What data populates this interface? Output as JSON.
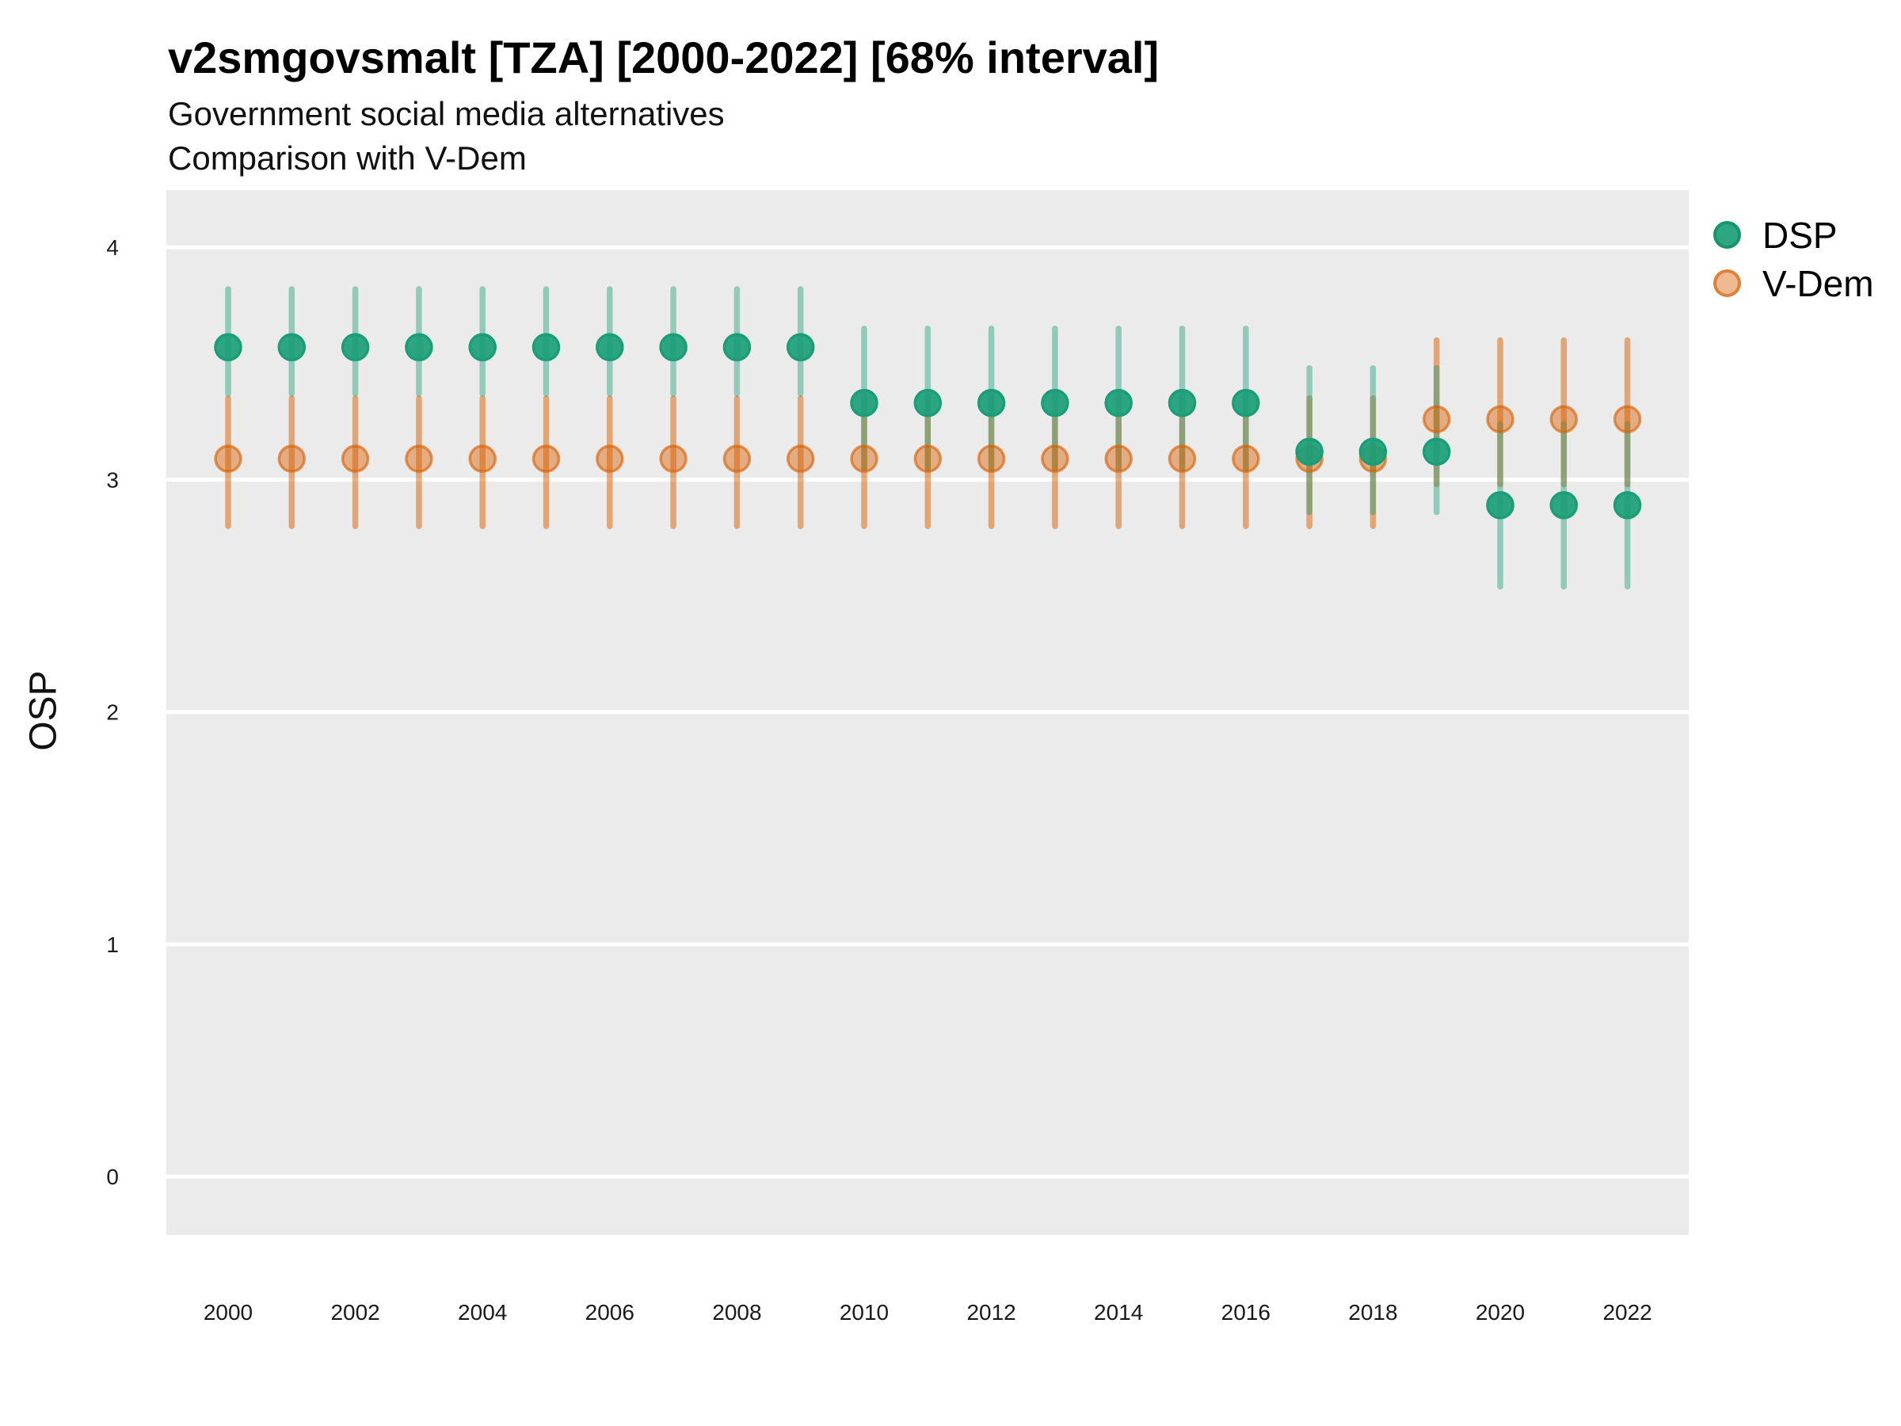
{
  "chart_data": {
    "type": "pointrange",
    "title": "v2smgovsmalt [TZA] [2000-2022] [68% interval]",
    "subtitle_line1": "Government social media alternatives",
    "subtitle_line2": "Comparison with V-Dem",
    "ylabel": "OSP",
    "xlabel": "",
    "interval": "68%",
    "country": "TZA",
    "ylim": [
      -0.25,
      4.25
    ],
    "xlim": [
      1999,
      2023
    ],
    "yticks": [
      0,
      1,
      2,
      3,
      4
    ],
    "xticks": [
      2000,
      2002,
      2004,
      2006,
      2008,
      2010,
      2012,
      2014,
      2016,
      2018,
      2020,
      2022
    ],
    "grid": "horizontal-major-only",
    "legend_position": "right",
    "panel_bg": "#EBEBEB",
    "gridline_color": "#FFFFFF",
    "point_format": "[year, est, lo, hi]",
    "series": [
      {
        "name": "DSP",
        "color": "#1B9E77",
        "points": [
          [
            2000,
            3.57,
            3.37,
            3.82
          ],
          [
            2001,
            3.57,
            3.37,
            3.82
          ],
          [
            2002,
            3.57,
            3.37,
            3.82
          ],
          [
            2003,
            3.57,
            3.37,
            3.82
          ],
          [
            2004,
            3.57,
            3.37,
            3.82
          ],
          [
            2005,
            3.57,
            3.37,
            3.82
          ],
          [
            2006,
            3.57,
            3.37,
            3.82
          ],
          [
            2007,
            3.57,
            3.37,
            3.82
          ],
          [
            2008,
            3.57,
            3.37,
            3.82
          ],
          [
            2009,
            3.57,
            3.37,
            3.82
          ],
          [
            2010,
            3.33,
            3.05,
            3.65
          ],
          [
            2011,
            3.33,
            3.05,
            3.65
          ],
          [
            2012,
            3.33,
            3.05,
            3.65
          ],
          [
            2013,
            3.33,
            3.05,
            3.65
          ],
          [
            2014,
            3.33,
            3.05,
            3.65
          ],
          [
            2015,
            3.33,
            3.05,
            3.65
          ],
          [
            2016,
            3.33,
            3.05,
            3.65
          ],
          [
            2017,
            3.12,
            2.86,
            3.48
          ],
          [
            2018,
            3.12,
            2.86,
            3.48
          ],
          [
            2019,
            3.12,
            2.86,
            3.48
          ],
          [
            2020,
            2.89,
            2.54,
            3.24
          ],
          [
            2021,
            2.89,
            2.54,
            3.24
          ],
          [
            2022,
            2.89,
            2.54,
            3.24
          ]
        ]
      },
      {
        "name": "V-Dem",
        "color": "#D95F02",
        "points": [
          [
            2000,
            3.09,
            2.8,
            3.35
          ],
          [
            2001,
            3.09,
            2.8,
            3.35
          ],
          [
            2002,
            3.09,
            2.8,
            3.35
          ],
          [
            2003,
            3.09,
            2.8,
            3.35
          ],
          [
            2004,
            3.09,
            2.8,
            3.35
          ],
          [
            2005,
            3.09,
            2.8,
            3.35
          ],
          [
            2006,
            3.09,
            2.8,
            3.35
          ],
          [
            2007,
            3.09,
            2.8,
            3.35
          ],
          [
            2008,
            3.09,
            2.8,
            3.35
          ],
          [
            2009,
            3.09,
            2.8,
            3.35
          ],
          [
            2010,
            3.09,
            2.8,
            3.35
          ],
          [
            2011,
            3.09,
            2.8,
            3.35
          ],
          [
            2012,
            3.09,
            2.8,
            3.35
          ],
          [
            2013,
            3.09,
            2.8,
            3.35
          ],
          [
            2014,
            3.09,
            2.8,
            3.35
          ],
          [
            2015,
            3.09,
            2.8,
            3.35
          ],
          [
            2016,
            3.09,
            2.8,
            3.35
          ],
          [
            2017,
            3.09,
            2.8,
            3.35
          ],
          [
            2018,
            3.09,
            2.8,
            3.35
          ],
          [
            2019,
            3.26,
            2.98,
            3.6
          ],
          [
            2020,
            3.26,
            2.98,
            3.6
          ],
          [
            2021,
            3.26,
            2.98,
            3.6
          ],
          [
            2022,
            3.26,
            2.98,
            3.6
          ]
        ]
      }
    ]
  }
}
